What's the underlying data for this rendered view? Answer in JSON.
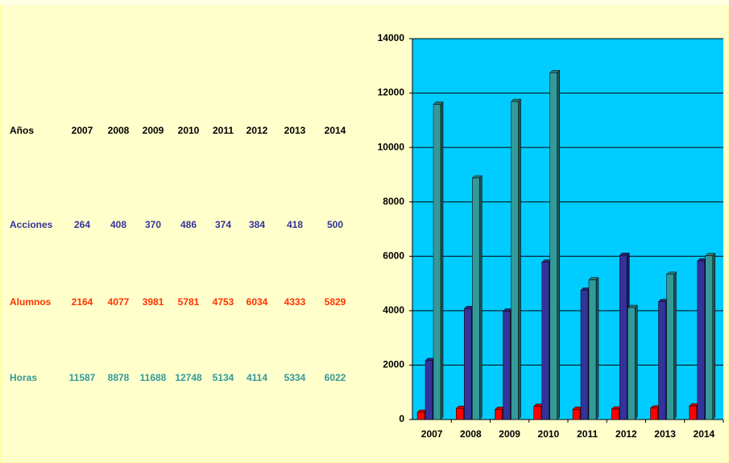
{
  "table": {
    "header": "Años"
  },
  "chart_data": {
    "type": "bar",
    "categories": [
      "2007",
      "2008",
      "2009",
      "2010",
      "2011",
      "2012",
      "2013",
      "2014"
    ],
    "series": [
      {
        "name": "Acciones",
        "color": "#ff0000",
        "text_color": "#333399",
        "values": [
          264,
          408,
          370,
          486,
          374,
          384,
          418,
          500
        ]
      },
      {
        "name": "Alumnos",
        "color": "#333399",
        "text_color": "#ff3300",
        "values": [
          2164,
          4077,
          3981,
          5781,
          4753,
          6034,
          4333,
          5829
        ]
      },
      {
        "name": "Horas",
        "color": "#339999",
        "text_color": "#339999",
        "values": [
          11587,
          8878,
          11688,
          12748,
          5134,
          4114,
          5334,
          6022
        ]
      }
    ],
    "ylim": [
      0,
      14000
    ],
    "yticks": [
      0,
      2000,
      4000,
      6000,
      8000,
      10000,
      12000,
      14000
    ],
    "plot_background": "#00ccff",
    "grid": true
  }
}
